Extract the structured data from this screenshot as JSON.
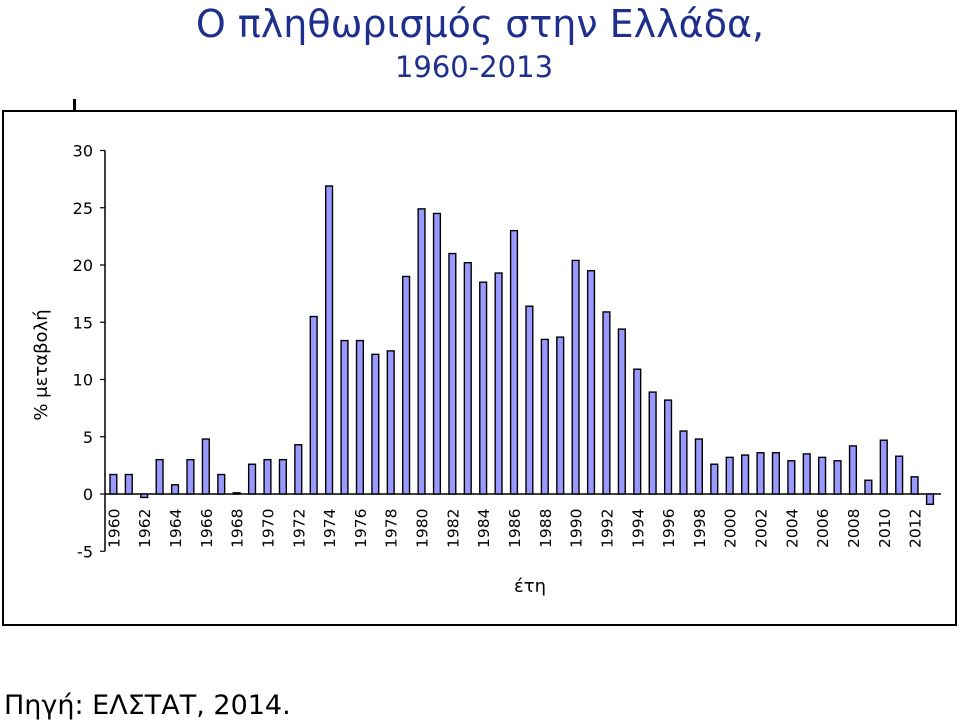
{
  "title": "Ο πληθωρισμός στην Ελλάδα,",
  "subtitle": "1960-2013",
  "source": "Πηγή: ΕΛΣΤΑΤ, 2014.",
  "colors": {
    "title": "#1f2f8c",
    "bar_fill": "#9999ff",
    "bar_stroke": "#000000"
  },
  "chart_data": {
    "type": "bar",
    "xlabel": "έτη",
    "ylabel": "% μεταβολή",
    "ylim": [
      -5,
      30
    ],
    "yticks": [
      -5,
      0,
      5,
      10,
      15,
      20,
      25,
      30
    ],
    "grid": false,
    "legend": "none",
    "categories": [
      "1960",
      "1961",
      "1962",
      "1963",
      "1964",
      "1965",
      "1966",
      "1967",
      "1968",
      "1969",
      "1970",
      "1971",
      "1972",
      "1973",
      "1974",
      "1975",
      "1976",
      "1977",
      "1978",
      "1979",
      "1980",
      "1981",
      "1982",
      "1983",
      "1984",
      "1985",
      "1986",
      "1987",
      "1988",
      "1989",
      "1990",
      "1991",
      "1992",
      "1993",
      "1994",
      "1995",
      "1996",
      "1997",
      "1998",
      "1999",
      "2000",
      "2001",
      "2002",
      "2003",
      "2004",
      "2005",
      "2006",
      "2007",
      "2008",
      "2009",
      "2010",
      "2011",
      "2012",
      "2013"
    ],
    "tick_labels": [
      "1960",
      "1962",
      "1964",
      "1966",
      "1968",
      "1970",
      "1972",
      "1974",
      "1976",
      "1978",
      "1980",
      "1982",
      "1984",
      "1986",
      "1988",
      "1990",
      "1992",
      "1994",
      "1996",
      "1998",
      "2000",
      "2002",
      "2004",
      "2006",
      "2008",
      "2010",
      "2012"
    ],
    "values": [
      1.7,
      1.7,
      -0.3,
      3.0,
      0.8,
      3.0,
      4.8,
      1.7,
      0.1,
      2.6,
      3.0,
      3.0,
      4.3,
      15.5,
      26.9,
      13.4,
      13.4,
      12.2,
      12.5,
      19.0,
      24.9,
      24.5,
      21.0,
      20.2,
      18.5,
      19.3,
      23.0,
      16.4,
      13.5,
      13.7,
      20.4,
      19.5,
      15.9,
      14.4,
      10.9,
      8.9,
      8.2,
      5.5,
      4.8,
      2.6,
      3.2,
      3.4,
      3.6,
      3.6,
      2.9,
      3.5,
      3.2,
      2.9,
      4.2,
      1.2,
      4.7,
      3.3,
      1.5,
      -0.9
    ]
  }
}
